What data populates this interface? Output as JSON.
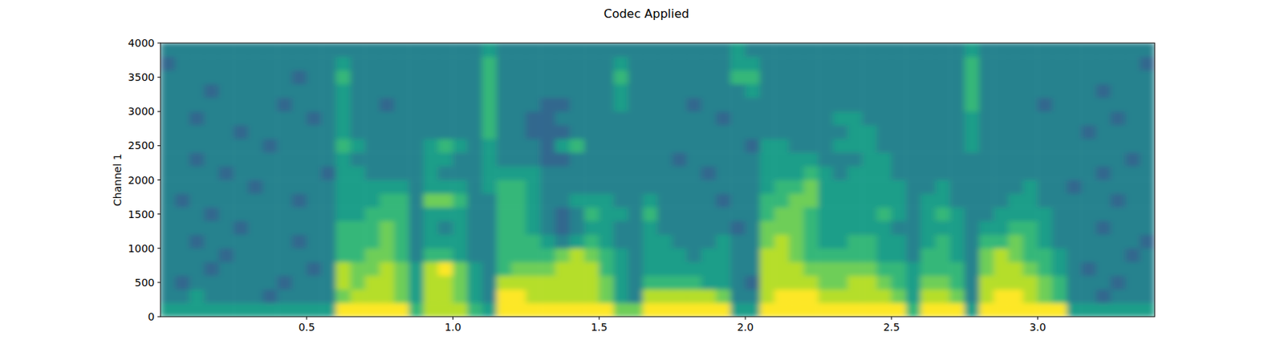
{
  "chart_data": {
    "type": "heatmap",
    "title": "Codec Applied",
    "y_label": "Channel 1",
    "xlim": [
      0,
      3.4
    ],
    "ylim": [
      0,
      4000
    ],
    "xticks": [
      0.5,
      {
        "value": 1,
        "label": "1.0"
      },
      1.5,
      {
        "value": 2,
        "label": "2.0"
      },
      2.5,
      {
        "value": 3,
        "label": "3.0"
      }
    ],
    "yticks": [
      0,
      500,
      1000,
      1500,
      2000,
      2500,
      3000,
      3500,
      4000
    ],
    "grid": false,
    "color_range": [
      0,
      9
    ],
    "cells": [
      [
        5,
        5,
        5,
        5,
        5,
        5,
        5,
        5,
        5,
        5,
        5,
        5,
        9,
        9,
        9,
        9,
        9,
        6,
        8,
        8,
        8,
        6,
        5,
        9,
        9,
        9,
        9,
        9,
        9,
        9,
        9,
        7,
        7,
        9,
        9,
        9,
        9,
        9,
        9,
        5,
        5,
        9,
        9,
        9,
        9,
        9,
        9,
        9,
        9,
        9,
        9,
        6,
        9,
        9,
        9,
        5,
        9,
        9,
        9,
        9,
        9,
        9,
        5,
        5,
        5,
        5,
        5,
        5
      ],
      [
        4,
        4,
        5,
        4,
        4,
        4,
        4,
        3,
        4,
        4,
        4,
        4,
        7,
        8,
        8,
        8,
        7,
        5,
        8,
        8,
        7,
        5,
        4,
        9,
        9,
        8,
        8,
        8,
        8,
        8,
        7,
        5,
        4,
        8,
        8,
        8,
        8,
        8,
        7,
        4,
        4,
        8,
        9,
        9,
        9,
        8,
        8,
        8,
        8,
        8,
        7,
        5,
        8,
        8,
        7,
        4,
        8,
        9,
        9,
        8,
        7,
        6,
        4,
        4,
        3,
        4,
        4,
        4
      ],
      [
        4,
        3,
        4,
        4,
        4,
        4,
        4,
        4,
        3,
        4,
        4,
        4,
        8,
        7,
        8,
        8,
        7,
        5,
        8,
        8,
        7,
        5,
        4,
        8,
        8,
        8,
        8,
        8,
        8,
        8,
        7,
        5,
        4,
        6,
        6,
        6,
        6,
        5,
        5,
        4,
        3,
        8,
        8,
        8,
        8,
        7,
        7,
        8,
        8,
        7,
        6,
        5,
        7,
        7,
        6,
        4,
        8,
        8,
        8,
        8,
        7,
        6,
        4,
        4,
        4,
        3,
        4,
        4
      ],
      [
        4,
        4,
        4,
        3,
        4,
        4,
        4,
        4,
        4,
        4,
        3,
        4,
        8,
        7,
        7,
        8,
        7,
        5,
        8,
        9,
        7,
        5,
        4,
        6,
        7,
        7,
        7,
        8,
        8,
        8,
        6,
        5,
        4,
        5,
        5,
        5,
        5,
        5,
        5,
        4,
        4,
        8,
        8,
        8,
        7,
        7,
        7,
        7,
        7,
        6,
        6,
        5,
        6,
        6,
        6,
        4,
        7,
        8,
        8,
        7,
        6,
        5,
        4,
        3,
        4,
        4,
        4,
        4
      ],
      [
        4,
        4,
        4,
        4,
        3,
        4,
        4,
        4,
        4,
        4,
        4,
        4,
        6,
        6,
        7,
        7,
        6,
        4,
        6,
        6,
        5,
        4,
        4,
        6,
        6,
        6,
        6,
        7,
        8,
        7,
        6,
        5,
        4,
        5,
        5,
        5,
        4,
        5,
        5,
        4,
        4,
        8,
        8,
        7,
        6,
        6,
        6,
        6,
        6,
        5,
        5,
        4,
        6,
        6,
        5,
        4,
        7,
        8,
        7,
        6,
        6,
        5,
        4,
        4,
        4,
        4,
        3,
        4
      ],
      [
        4,
        4,
        3,
        4,
        4,
        4,
        4,
        4,
        4,
        3,
        4,
        4,
        6,
        6,
        6,
        7,
        6,
        4,
        5,
        5,
        5,
        4,
        4,
        6,
        6,
        6,
        5,
        4,
        5,
        6,
        5,
        4,
        4,
        5,
        5,
        4,
        4,
        4,
        5,
        4,
        4,
        7,
        8,
        7,
        6,
        5,
        5,
        6,
        6,
        5,
        5,
        4,
        5,
        6,
        5,
        4,
        6,
        6,
        7,
        6,
        5,
        4,
        4,
        4,
        4,
        4,
        4,
        3
      ],
      [
        4,
        4,
        4,
        4,
        4,
        3,
        4,
        4,
        4,
        4,
        4,
        4,
        6,
        6,
        6,
        7,
        6,
        4,
        5,
        4,
        5,
        4,
        4,
        6,
        6,
        5,
        4,
        3,
        4,
        5,
        5,
        4,
        4,
        5,
        4,
        4,
        4,
        4,
        4,
        3,
        4,
        7,
        7,
        7,
        6,
        5,
        5,
        5,
        5,
        5,
        4,
        4,
        5,
        5,
        5,
        4,
        5,
        5,
        6,
        6,
        5,
        4,
        4,
        4,
        3,
        4,
        4,
        4
      ],
      [
        4,
        4,
        4,
        3,
        4,
        4,
        4,
        4,
        4,
        4,
        4,
        4,
        5,
        5,
        6,
        6,
        6,
        4,
        5,
        5,
        5,
        4,
        4,
        6,
        6,
        5,
        4,
        3,
        4,
        6,
        5,
        5,
        4,
        6,
        4,
        4,
        4,
        4,
        4,
        4,
        4,
        6,
        7,
        7,
        6,
        5,
        5,
        5,
        5,
        6,
        5,
        4,
        5,
        6,
        5,
        4,
        4,
        5,
        5,
        5,
        5,
        4,
        4,
        4,
        4,
        4,
        4,
        4
      ],
      [
        4,
        3,
        4,
        4,
        4,
        4,
        4,
        4,
        4,
        3,
        4,
        4,
        5,
        5,
        5,
        6,
        6,
        4,
        7,
        7,
        6,
        4,
        4,
        6,
        6,
        5,
        4,
        4,
        5,
        5,
        5,
        4,
        4,
        5,
        4,
        4,
        4,
        4,
        3,
        4,
        4,
        6,
        6,
        7,
        7,
        5,
        5,
        5,
        5,
        5,
        5,
        4,
        5,
        5,
        4,
        4,
        4,
        4,
        5,
        5,
        4,
        4,
        4,
        4,
        4,
        3,
        4,
        4
      ],
      [
        4,
        4,
        4,
        4,
        4,
        4,
        3,
        4,
        4,
        4,
        4,
        4,
        5,
        5,
        5,
        5,
        5,
        4,
        5,
        5,
        5,
        4,
        5,
        6,
        6,
        5,
        4,
        4,
        4,
        4,
        4,
        4,
        4,
        4,
        4,
        4,
        4,
        4,
        4,
        4,
        4,
        5,
        6,
        6,
        7,
        5,
        5,
        5,
        5,
        5,
        5,
        4,
        4,
        5,
        4,
        4,
        4,
        4,
        4,
        5,
        4,
        4,
        3,
        4,
        4,
        4,
        4,
        4
      ],
      [
        4,
        4,
        4,
        4,
        3,
        4,
        4,
        4,
        4,
        4,
        4,
        3,
        5,
        5,
        4,
        4,
        4,
        4,
        5,
        4,
        4,
        4,
        5,
        5,
        5,
        5,
        4,
        4,
        4,
        4,
        4,
        4,
        4,
        4,
        4,
        4,
        4,
        3,
        4,
        4,
        4,
        5,
        5,
        5,
        6,
        5,
        4,
        5,
        5,
        5,
        4,
        4,
        4,
        4,
        4,
        4,
        4,
        4,
        4,
        4,
        4,
        4,
        4,
        4,
        3,
        4,
        4,
        4
      ],
      [
        4,
        4,
        3,
        4,
        4,
        4,
        4,
        4,
        4,
        4,
        4,
        4,
        5,
        4,
        4,
        4,
        4,
        4,
        5,
        5,
        4,
        4,
        5,
        4,
        4,
        4,
        3,
        3,
        4,
        4,
        4,
        4,
        4,
        4,
        4,
        3,
        4,
        4,
        4,
        4,
        4,
        5,
        5,
        5,
        5,
        4,
        4,
        4,
        5,
        5,
        4,
        4,
        4,
        4,
        4,
        4,
        4,
        4,
        4,
        4,
        4,
        4,
        4,
        4,
        4,
        4,
        3,
        4
      ],
      [
        4,
        4,
        4,
        4,
        4,
        4,
        4,
        3,
        4,
        4,
        4,
        4,
        6,
        5,
        4,
        4,
        4,
        4,
        5,
        6,
        5,
        4,
        5,
        4,
        4,
        4,
        3,
        5,
        6,
        4,
        4,
        4,
        4,
        4,
        4,
        4,
        4,
        4,
        4,
        4,
        3,
        5,
        5,
        4,
        4,
        4,
        5,
        5,
        5,
        4,
        4,
        4,
        4,
        4,
        4,
        5,
        4,
        4,
        4,
        4,
        4,
        4,
        4,
        4,
        4,
        4,
        4,
        4
      ],
      [
        4,
        4,
        4,
        4,
        4,
        3,
        4,
        4,
        4,
        4,
        4,
        4,
        5,
        4,
        4,
        4,
        4,
        4,
        4,
        4,
        4,
        4,
        6,
        4,
        4,
        3,
        3,
        3,
        4,
        4,
        4,
        4,
        4,
        4,
        4,
        4,
        4,
        4,
        4,
        4,
        4,
        4,
        4,
        4,
        4,
        4,
        4,
        5,
        5,
        4,
        4,
        4,
        4,
        4,
        4,
        5,
        4,
        4,
        4,
        4,
        4,
        4,
        4,
        3,
        4,
        4,
        4,
        4
      ],
      [
        4,
        4,
        3,
        4,
        4,
        4,
        4,
        4,
        4,
        4,
        3,
        4,
        5,
        4,
        4,
        4,
        4,
        4,
        4,
        4,
        4,
        4,
        6,
        4,
        4,
        3,
        3,
        4,
        4,
        4,
        4,
        4,
        4,
        4,
        4,
        4,
        4,
        4,
        3,
        4,
        4,
        4,
        4,
        4,
        4,
        4,
        5,
        5,
        4,
        4,
        4,
        4,
        4,
        4,
        4,
        5,
        4,
        4,
        4,
        4,
        4,
        4,
        4,
        4,
        4,
        3,
        4,
        4
      ],
      [
        4,
        4,
        4,
        4,
        4,
        4,
        4,
        4,
        3,
        4,
        4,
        4,
        5,
        4,
        4,
        3,
        4,
        4,
        4,
        4,
        4,
        4,
        6,
        4,
        4,
        4,
        3,
        3,
        4,
        4,
        4,
        5,
        4,
        4,
        4,
        4,
        3,
        4,
        4,
        4,
        4,
        4,
        4,
        4,
        4,
        4,
        4,
        4,
        4,
        4,
        4,
        4,
        4,
        4,
        4,
        6,
        4,
        4,
        4,
        4,
        3,
        4,
        4,
        4,
        4,
        4,
        4,
        4
      ],
      [
        4,
        4,
        4,
        3,
        4,
        4,
        4,
        4,
        4,
        4,
        4,
        4,
        5,
        4,
        4,
        4,
        4,
        4,
        4,
        4,
        4,
        4,
        6,
        4,
        4,
        4,
        4,
        4,
        4,
        4,
        4,
        5,
        4,
        4,
        4,
        4,
        4,
        4,
        4,
        4,
        5,
        4,
        4,
        4,
        4,
        4,
        4,
        4,
        4,
        4,
        4,
        4,
        4,
        4,
        4,
        6,
        4,
        4,
        4,
        4,
        4,
        4,
        4,
        4,
        3,
        4,
        4,
        4
      ],
      [
        4,
        4,
        4,
        4,
        4,
        4,
        4,
        4,
        4,
        3,
        4,
        4,
        6,
        4,
        4,
        4,
        4,
        4,
        4,
        4,
        4,
        4,
        6,
        4,
        4,
        4,
        4,
        4,
        4,
        4,
        4,
        6,
        4,
        4,
        4,
        4,
        4,
        4,
        4,
        6,
        6,
        4,
        4,
        4,
        4,
        4,
        4,
        4,
        4,
        4,
        4,
        4,
        4,
        4,
        4,
        6,
        4,
        4,
        4,
        4,
        4,
        4,
        4,
        4,
        4,
        4,
        4,
        4
      ],
      [
        3,
        4,
        4,
        4,
        4,
        4,
        4,
        4,
        4,
        4,
        4,
        4,
        5,
        4,
        4,
        4,
        4,
        4,
        4,
        4,
        4,
        4,
        6,
        4,
        4,
        4,
        4,
        4,
        4,
        4,
        4,
        5,
        4,
        4,
        4,
        4,
        4,
        4,
        4,
        5,
        5,
        4,
        4,
        4,
        4,
        4,
        4,
        4,
        4,
        4,
        4,
        4,
        4,
        4,
        4,
        6,
        4,
        4,
        4,
        4,
        4,
        4,
        4,
        4,
        4,
        4,
        4,
        3
      ],
      [
        4,
        4,
        4,
        4,
        4,
        4,
        4,
        4,
        4,
        4,
        4,
        4,
        4,
        4,
        4,
        4,
        4,
        4,
        4,
        4,
        4,
        4,
        5,
        4,
        4,
        4,
        4,
        4,
        4,
        4,
        4,
        4,
        4,
        4,
        4,
        4,
        4,
        4,
        4,
        5,
        4,
        4,
        4,
        4,
        4,
        4,
        4,
        4,
        4,
        4,
        4,
        4,
        4,
        4,
        4,
        5,
        4,
        4,
        4,
        4,
        4,
        4,
        4,
        4,
        4,
        4,
        4,
        4
      ]
    ]
  }
}
